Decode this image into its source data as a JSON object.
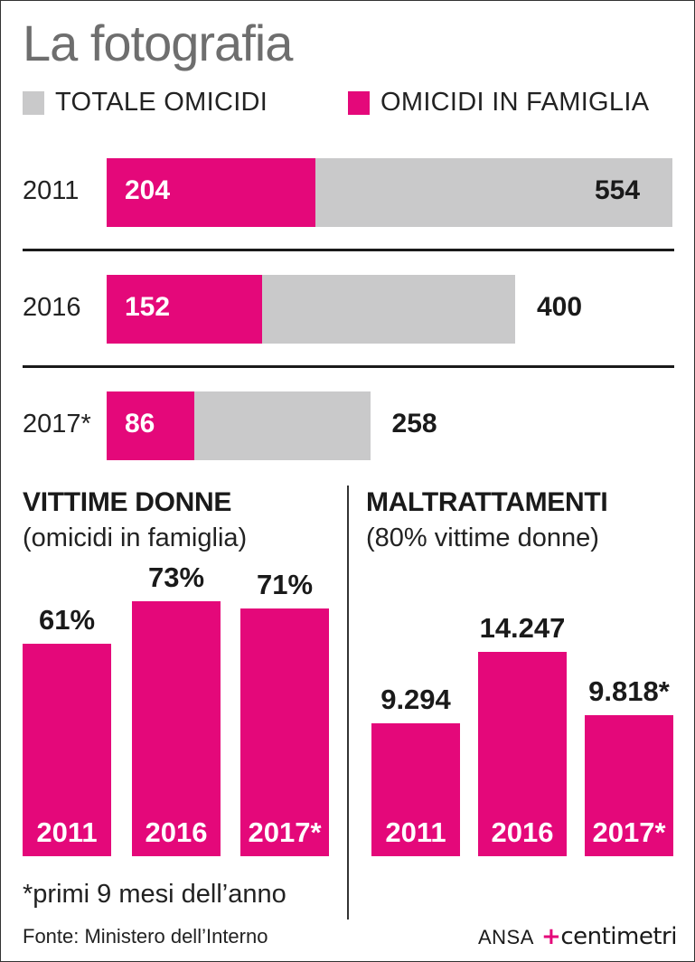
{
  "title": "La fotografia",
  "legend": {
    "total_label": "TOTALE OMICIDI",
    "family_label": "OMICIDI IN FAMIGLIA",
    "total_color": "#c9c9ca",
    "family_color": "#e4087a"
  },
  "chart_data": [
    {
      "type": "bar",
      "orientation": "horizontal",
      "categories": [
        "2011",
        "2016",
        "2017*"
      ],
      "series": [
        {
          "name": "TOTALE OMICIDI",
          "values": [
            554,
            400,
            258
          ]
        },
        {
          "name": "OMICIDI IN FAMIGLIA",
          "values": [
            204,
            152,
            86
          ]
        }
      ],
      "labels": {
        "total": [
          "554",
          "400",
          "258"
        ],
        "family": [
          "204",
          "152",
          "86"
        ]
      },
      "legend_position": "top"
    },
    {
      "type": "bar",
      "title": "VITTIME DONNE",
      "subtitle": "(omicidi in famiglia)",
      "categories": [
        "2011",
        "2016",
        "2017*"
      ],
      "values": [
        61,
        73,
        71
      ],
      "value_labels": [
        "61%",
        "73%",
        "71%"
      ],
      "unit": "%"
    },
    {
      "type": "bar",
      "title": "MALTRATTAMENTI",
      "subtitle": "(80% vittime donne)",
      "categories": [
        "2011",
        "2016",
        "2017*"
      ],
      "values": [
        9294,
        14247,
        9818
      ],
      "value_labels": [
        "9.294",
        "14.247",
        "9.818*"
      ]
    }
  ],
  "footnote": "*primi 9 mesi dell’anno",
  "source": "Fonte: Ministero dell’Interno",
  "credit": {
    "agency": "ANSA",
    "logo_mark": "+",
    "logo_text": "centimetri"
  }
}
